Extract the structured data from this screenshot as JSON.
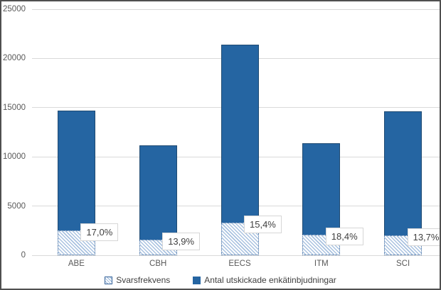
{
  "chart_data": {
    "type": "bar",
    "subtype": "overlay-stacked-column",
    "title": "",
    "xlabel": "",
    "ylabel": "",
    "categories": [
      "ABE",
      "CBH",
      "EECS",
      "ITM",
      "SCI"
    ],
    "series": [
      {
        "name": "Svarsfrekvens",
        "swatch": "hatched",
        "values": [
          2500,
          1550,
          3300,
          2100,
          2000
        ]
      },
      {
        "name": "Antal utskickade enkätinbjudningar",
        "swatch": "solid",
        "values": [
          14700,
          11150,
          21400,
          11400,
          14600
        ]
      }
    ],
    "point_labels": [
      "17,0%",
      "13,9%",
      "15,4%",
      "18,4%",
      "13,7%"
    ],
    "ylim": [
      0,
      25000
    ],
    "yticks": [
      0,
      5000,
      10000,
      15000,
      20000,
      25000
    ],
    "grid": true,
    "legend_position": "bottom",
    "colors": {
      "solid_bar": "#2565a2",
      "bar_border": "#1f4a72",
      "hatch_stripe": "#a9c2e0",
      "hatch_border": "#35639a",
      "gridline": "#d9d9d9",
      "axis_text": "#595959",
      "label_text": "#404040",
      "frame_border": "#4f4f4f"
    }
  }
}
